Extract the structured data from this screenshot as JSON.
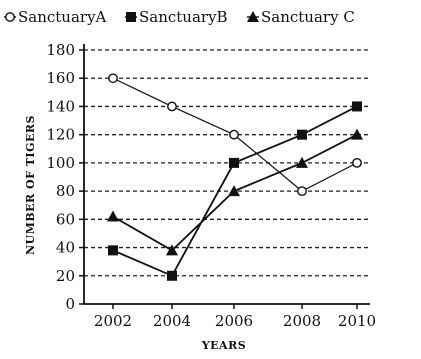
{
  "chart_data": {
    "type": "line",
    "title": "",
    "xlabel": "YEARS",
    "ylabel": "NUMBER OF TIGERS",
    "x": [
      "2002",
      "2004",
      "2006",
      "2008",
      "2010"
    ],
    "ylim": [
      0,
      180
    ],
    "yticks": [
      "0",
      "20",
      "40",
      "60",
      "80",
      "100",
      "120",
      "140",
      "160",
      "180"
    ],
    "grid": "horizontal-dashed",
    "legend_position": "top",
    "series": [
      {
        "name": "SanctuaryA",
        "marker": "circle-open",
        "values": [
          160,
          140,
          120,
          80,
          100
        ]
      },
      {
        "name": "SanctuaryB",
        "marker": "square-filled",
        "values": [
          38,
          20,
          100,
          120,
          140
        ]
      },
      {
        "name": "Sanctuary C",
        "marker": "triangle-filled",
        "values": [
          62,
          38,
          80,
          100,
          120
        ]
      }
    ]
  }
}
